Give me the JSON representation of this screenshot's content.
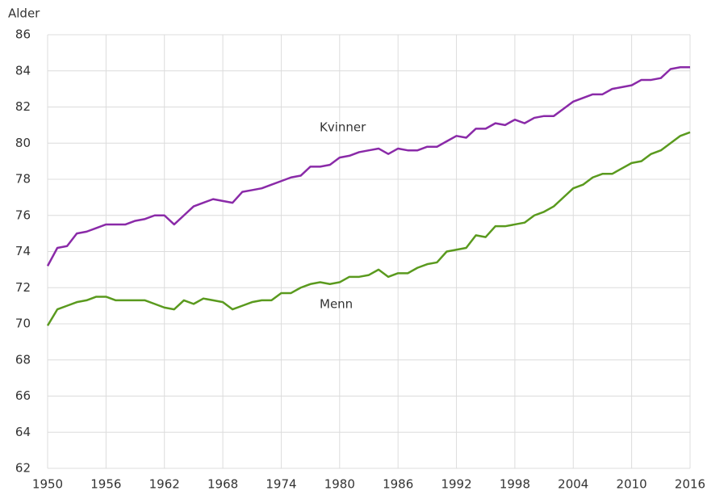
{
  "chart_data": {
    "type": "line",
    "y_label": "Alder",
    "x": [
      1950,
      1951,
      1952,
      1953,
      1954,
      1955,
      1956,
      1957,
      1958,
      1959,
      1960,
      1961,
      1962,
      1963,
      1964,
      1965,
      1966,
      1967,
      1968,
      1969,
      1970,
      1971,
      1972,
      1973,
      1974,
      1975,
      1976,
      1977,
      1978,
      1979,
      1980,
      1981,
      1982,
      1983,
      1984,
      1985,
      1986,
      1987,
      1988,
      1989,
      1990,
      1991,
      1992,
      1993,
      1994,
      1995,
      1996,
      1997,
      1998,
      1999,
      2000,
      2001,
      2002,
      2003,
      2004,
      2005,
      2006,
      2007,
      2008,
      2009,
      2010,
      2011,
      2012,
      2013,
      2014,
      2015,
      2016
    ],
    "series": [
      {
        "name": "Kvinner",
        "color": "#8a2aa8",
        "values": [
          73.2,
          74.2,
          74.3,
          75.0,
          75.1,
          75.3,
          75.5,
          75.5,
          75.5,
          75.7,
          75.8,
          76.0,
          76.0,
          75.5,
          76.0,
          76.5,
          76.7,
          76.9,
          76.8,
          76.7,
          77.3,
          77.4,
          77.5,
          77.7,
          77.9,
          78.1,
          78.2,
          78.7,
          78.7,
          78.8,
          79.2,
          79.3,
          79.5,
          79.6,
          79.7,
          79.4,
          79.7,
          79.6,
          79.6,
          79.8,
          79.8,
          80.1,
          80.4,
          80.3,
          80.8,
          80.8,
          81.1,
          81.0,
          81.3,
          81.1,
          81.4,
          81.5,
          81.5,
          81.9,
          82.3,
          82.5,
          82.7,
          82.7,
          83.0,
          83.1,
          83.2,
          83.5,
          83.5,
          83.6,
          84.1,
          84.2,
          84.2
        ]
      },
      {
        "name": "Menn",
        "color": "#5a9a1e",
        "values": [
          69.9,
          70.8,
          71.0,
          71.2,
          71.3,
          71.5,
          71.5,
          71.3,
          71.3,
          71.3,
          71.3,
          71.1,
          70.9,
          70.8,
          71.3,
          71.1,
          71.4,
          71.3,
          71.2,
          70.8,
          71.0,
          71.2,
          71.3,
          71.3,
          71.7,
          71.7,
          72.0,
          72.2,
          72.3,
          72.2,
          72.3,
          72.6,
          72.6,
          72.7,
          73.0,
          72.6,
          72.8,
          72.8,
          73.1,
          73.3,
          73.4,
          74.0,
          74.1,
          74.2,
          74.9,
          74.8,
          75.4,
          75.4,
          75.5,
          75.6,
          76.0,
          76.2,
          76.5,
          77.0,
          77.5,
          77.7,
          78.1,
          78.3,
          78.3,
          78.6,
          78.9,
          79.0,
          79.4,
          79.6,
          80.0,
          80.4,
          80.6
        ]
      }
    ],
    "xlim": [
      1950,
      2016
    ],
    "xticks": [
      1950,
      1956,
      1962,
      1968,
      1974,
      1980,
      1986,
      1992,
      1998,
      2004,
      2010,
      2016
    ],
    "ylim": [
      62,
      86
    ],
    "yticks": [
      62,
      64,
      66,
      68,
      70,
      72,
      74,
      76,
      78,
      80,
      82,
      84,
      86
    ],
    "grid": true
  }
}
